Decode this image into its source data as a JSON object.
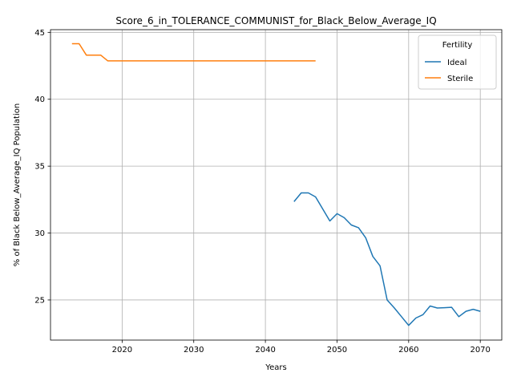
{
  "chart_data": {
    "type": "line",
    "title": "Score_6_in_TOLERANCE_COMMUNIST_for_Black_Below_Average_IQ",
    "xlabel": "Years",
    "ylabel": "% of Black Below_Average_IQ Population",
    "xlim": [
      2010,
      2073
    ],
    "ylim": [
      22,
      45.2
    ],
    "xticks": [
      2020,
      2030,
      2040,
      2050,
      2060,
      2070
    ],
    "yticks": [
      25,
      30,
      35,
      40,
      45
    ],
    "grid": true,
    "legend": {
      "title": "Fertility",
      "placement": "top-right"
    },
    "series": [
      {
        "name": "Ideal",
        "color": "#1f77b4",
        "x": [
          2044,
          2045,
          2046,
          2047,
          2048,
          2049,
          2050,
          2051,
          2052,
          2053,
          2054,
          2055,
          2056,
          2057,
          2058,
          2059,
          2060,
          2061,
          2062,
          2063,
          2064,
          2065,
          2066,
          2067,
          2068,
          2069,
          2070
        ],
        "y": [
          32.35,
          33.0,
          33.0,
          32.7,
          31.8,
          30.9,
          31.45,
          31.15,
          30.6,
          30.4,
          29.65,
          28.25,
          27.55,
          25.0,
          24.4,
          23.75,
          23.1,
          23.65,
          23.9,
          24.55,
          24.4,
          24.42,
          24.45,
          23.75,
          24.15,
          24.3,
          24.15
        ]
      },
      {
        "name": "Sterile",
        "color": "#ff7f0e",
        "x": [
          2013,
          2014,
          2015,
          2016,
          2017,
          2018,
          2019,
          2020,
          2025,
          2030,
          2035,
          2040,
          2045,
          2047
        ],
        "y": [
          44.15,
          44.15,
          43.3,
          43.3,
          43.3,
          42.87,
          42.87,
          42.87,
          42.87,
          42.87,
          42.87,
          42.87,
          42.87,
          42.87
        ]
      }
    ]
  }
}
